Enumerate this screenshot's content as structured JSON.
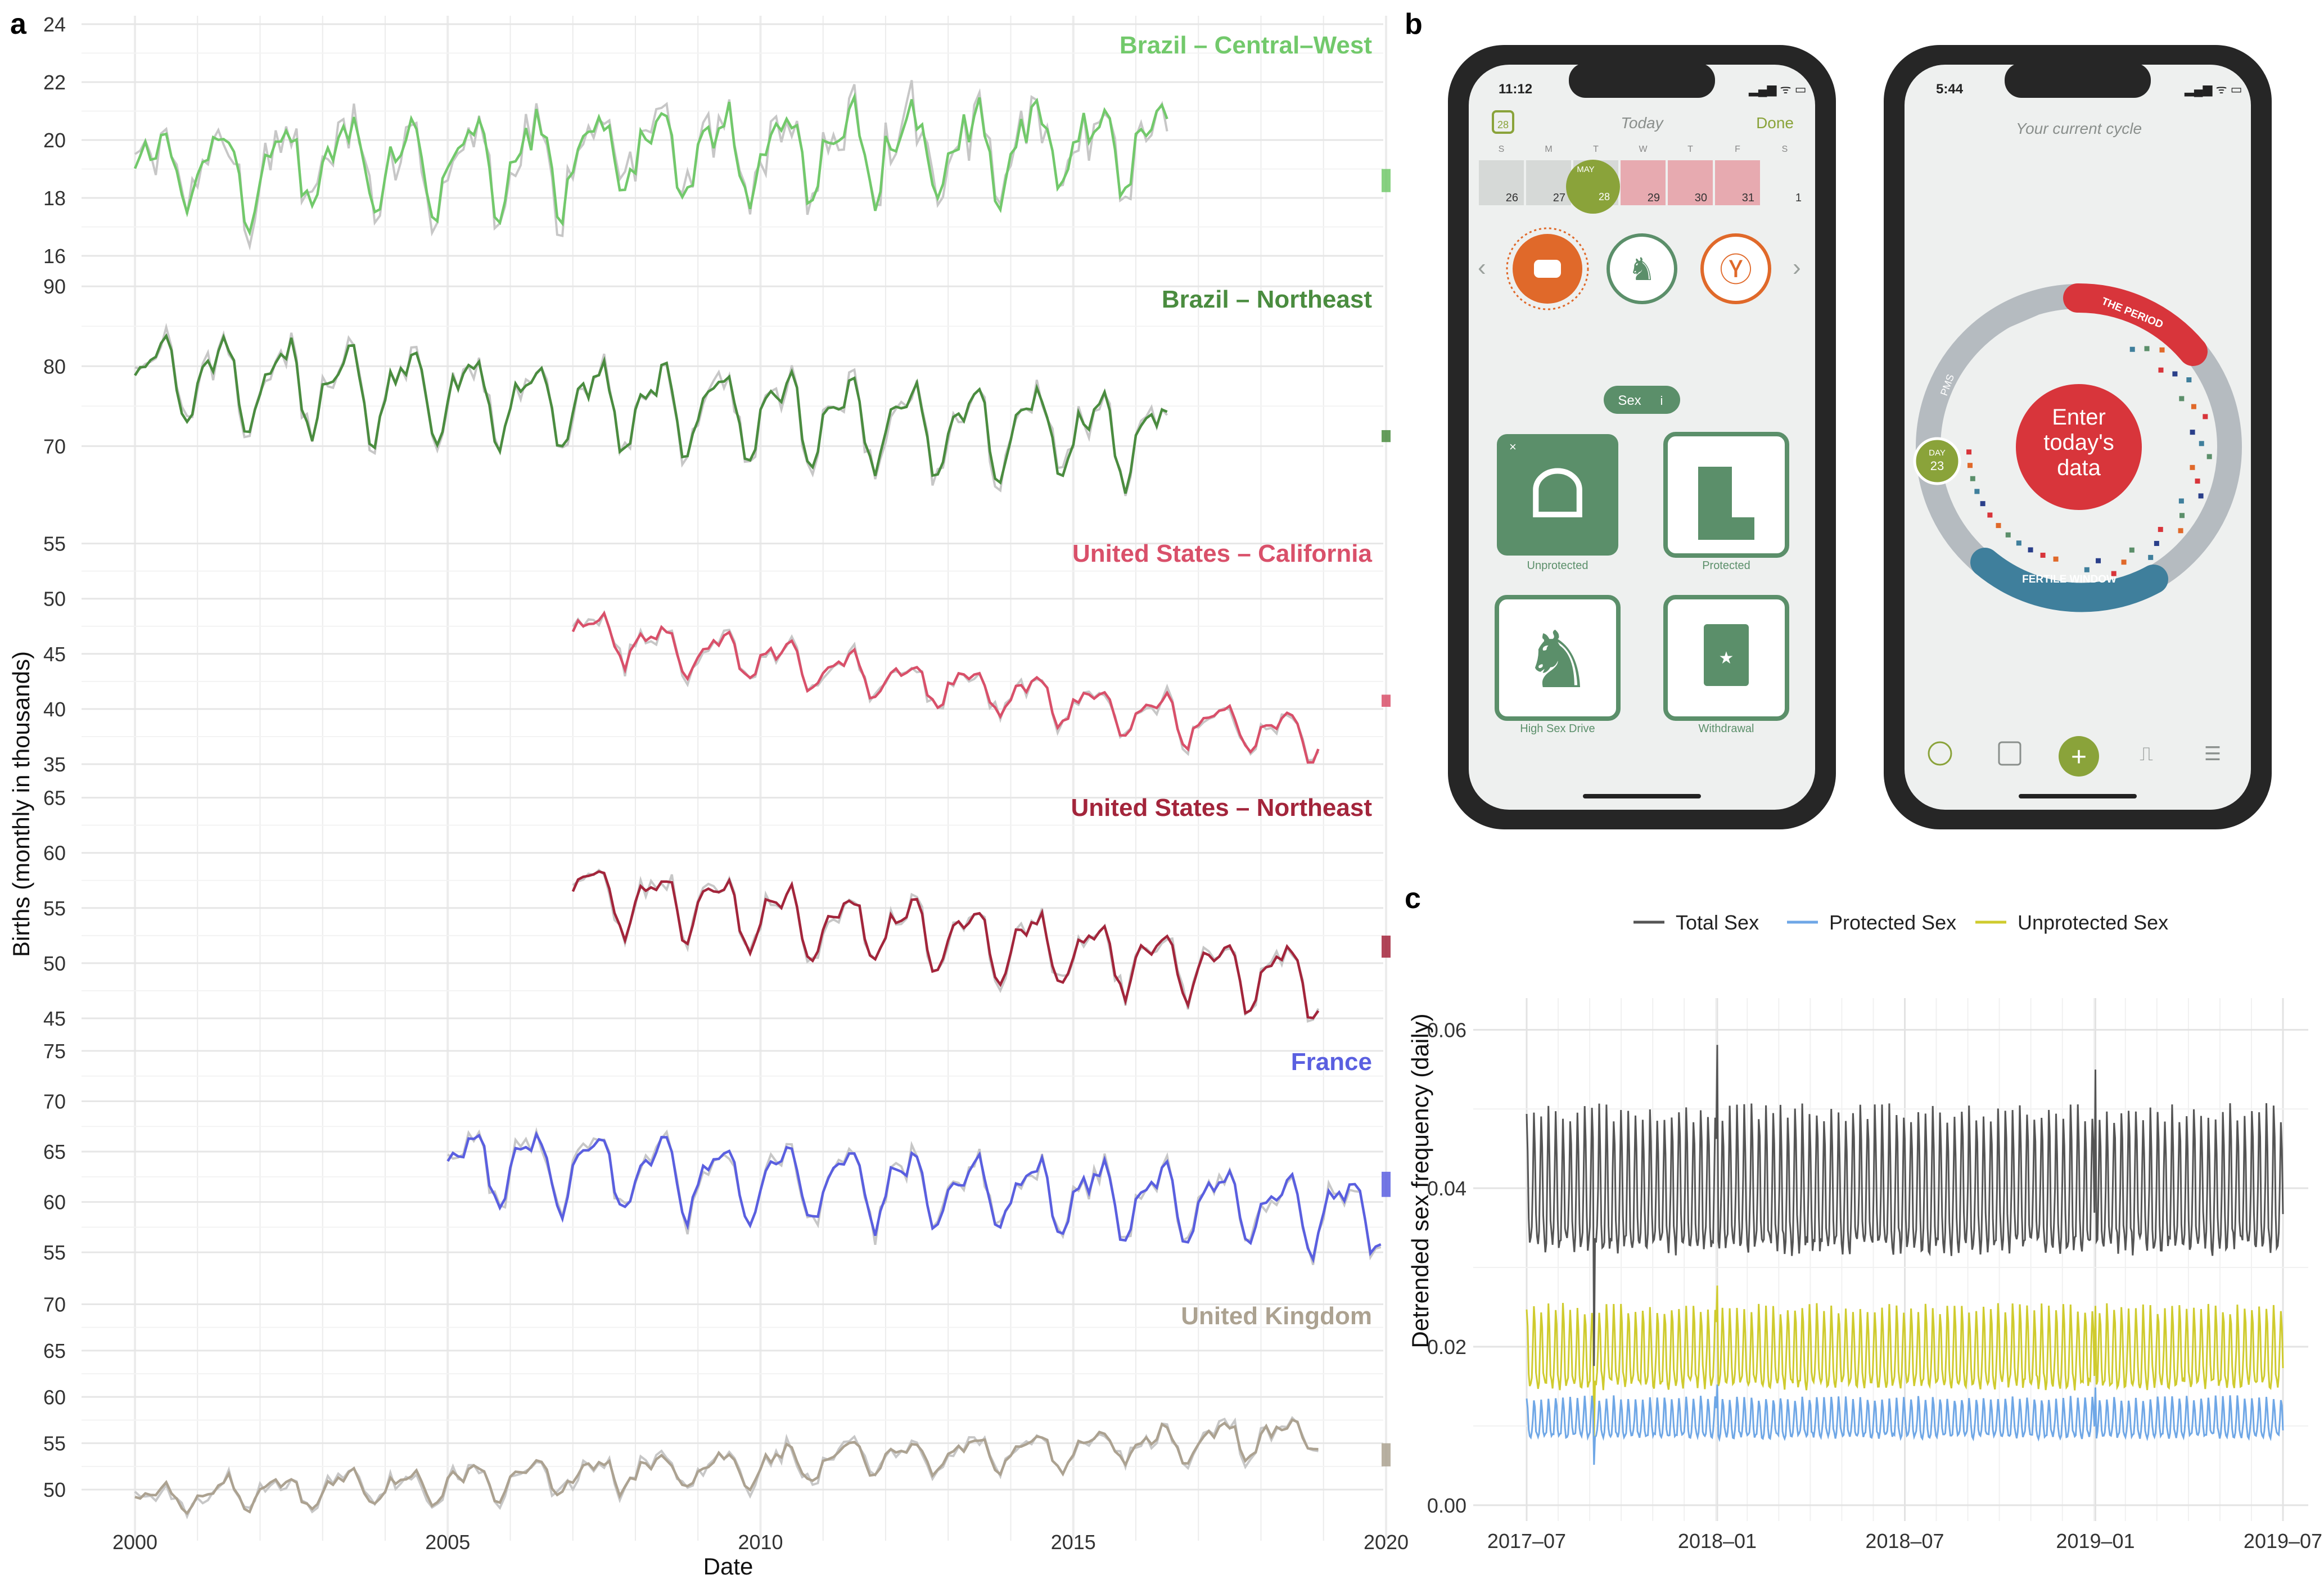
{
  "panel_labels": {
    "a": "a",
    "b": "b",
    "c": "c"
  },
  "chart_data": [
    {
      "type": "line",
      "panel": "a",
      "xlabel": "Date",
      "ylabel": "Births (monthly in thousands)",
      "x_ticks": [
        2000,
        2005,
        2010,
        2015,
        2020
      ],
      "xlim": [
        2000,
        2020
      ],
      "raw_series_color": "#c7c7c7",
      "facets": [
        {
          "name": "Brazil – Central–West",
          "color": "#72c96b",
          "ylim": [
            16,
            24
          ],
          "yticks": [
            16,
            18,
            20,
            22,
            24
          ],
          "x_start": 2000.0,
          "x_end": 2016.5,
          "ribbon": [
            18.2,
            19.0
          ],
          "mean": 19.0,
          "amp": 1.2,
          "trend": [
            0.0,
            1.0
          ],
          "noise": 0.9
        },
        {
          "name": "Brazil – Northeast",
          "color": "#4a8c3f",
          "ylim": [
            62,
            91
          ],
          "yticks": [
            70,
            80,
            90
          ],
          "x_start": 2000.0,
          "x_end": 2016.5,
          "ribbon": [
            70.5,
            72.0
          ],
          "mean": 76.0,
          "amp": 4.5,
          "trend": [
            3.0,
            -5.0
          ],
          "noise": 1.8
        },
        {
          "name": "United States – California",
          "color": "#d9506a",
          "ylim": [
            35,
            56
          ],
          "yticks": [
            35,
            40,
            45,
            50,
            55
          ],
          "x_start": 2007.0,
          "x_end": 2018.9,
          "ribbon": [
            40.2,
            41.3
          ],
          "mean": 43.0,
          "amp": 1.6,
          "trend": [
            4.0,
            -5.5
          ],
          "noise": 0.8
        },
        {
          "name": "United States – Northeast",
          "color": "#a3253b",
          "ylim": [
            45,
            66
          ],
          "yticks": [
            45,
            50,
            55,
            60,
            65
          ],
          "x_start": 2007.0,
          "x_end": 2018.9,
          "ribbon": [
            50.5,
            52.5
          ],
          "mean": 53.0,
          "amp": 2.5,
          "trend": [
            3.5,
            -4.5
          ],
          "noise": 1.0
        },
        {
          "name": "France",
          "color": "#5a5fe0",
          "ylim": [
            53,
            76
          ],
          "yticks": [
            55,
            60,
            65,
            70,
            75
          ],
          "x_start": 2005.0,
          "x_end": 2019.9,
          "ribbon": [
            60.5,
            63.0
          ],
          "mean": 63.0,
          "amp": 3.0,
          "trend": [
            1.0,
            -4.0
          ],
          "noise": 1.2
        },
        {
          "name": "United Kingdom",
          "color": "#aca291",
          "ylim": [
            46,
            71
          ],
          "yticks": [
            50,
            55,
            60,
            65,
            70
          ],
          "x_start": 2000.0,
          "x_end": 2018.9,
          "ribbon": [
            52.5,
            55.0
          ],
          "mean": 55.0,
          "amp": 1.5,
          "trend": [
            -6.0,
            1.0
          ],
          "noise": 1.0
        }
      ]
    },
    {
      "type": "line",
      "panel": "c",
      "xlabel": "",
      "ylabel": "Detrended sex frequency (daily)",
      "x_ticks": [
        "2017–07",
        "2018–01",
        "2018–07",
        "2019–01",
        "2019–07"
      ],
      "x_tick_days": [
        0,
        184,
        365,
        549,
        730
      ],
      "ylim": [
        -0.002,
        0.064
      ],
      "yticks": [
        "0.00",
        "0.02",
        "0.04",
        "0.06"
      ],
      "ytick_values": [
        0.0,
        0.02,
        0.04,
        0.06
      ],
      "legend_position": "top",
      "series": [
        {
          "name": "Total Sex",
          "color": "#555555",
          "base": 0.039,
          "weekly_amp": 0.021
        },
        {
          "name": "Protected Sex",
          "color": "#6fa7e6",
          "base": 0.0105,
          "weekly_amp": 0.006
        },
        {
          "name": "Unprotected Sex",
          "color": "#cfcb2e",
          "base": 0.0188,
          "weekly_amp": 0.012
        }
      ]
    }
  ],
  "phone_left": {
    "time": "11:12",
    "calendar_icon_day": "28",
    "today_label": "Today",
    "done_label": "Done",
    "weekdays": [
      "S",
      "M",
      "T",
      "W",
      "T",
      "F",
      "S"
    ],
    "dates": [
      "26",
      "27",
      "28",
      "29",
      "30",
      "31",
      "1"
    ],
    "selected_month": "MAY",
    "selected_day": "28",
    "category_chip": "Sex",
    "chip_info": "i",
    "tiles": [
      "Unprotected",
      "Protected",
      "High Sex Drive",
      "Withdrawal"
    ],
    "colors": {
      "green": "#5b8f6a",
      "orange": "#e0692a",
      "olive": "#8aa33a",
      "period_pink": "#e7aab0"
    }
  },
  "phone_right": {
    "time": "5:44",
    "header": "Your current cycle",
    "center_text": [
      "Enter",
      "today's",
      "data"
    ],
    "period_label": "THE PERIOD",
    "fertile_label": "FERTILE WINDOW",
    "pms_label": "PMS",
    "day_label": "DAY",
    "day_number": "23",
    "colors": {
      "red": "#d8353b",
      "blue": "#3f7f9c",
      "ring": "#b5bbc0"
    }
  }
}
